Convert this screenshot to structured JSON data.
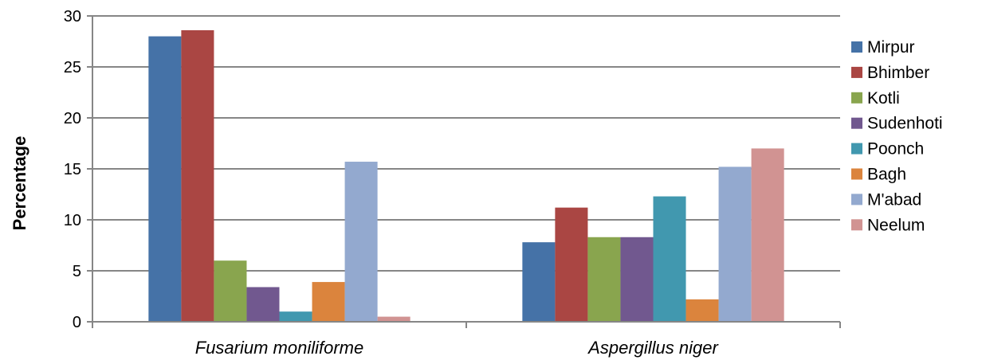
{
  "chart_data": {
    "type": "bar",
    "categories": [
      "Fusarium moniliforme",
      "Aspergillus niger"
    ],
    "ylabel": "Percentage",
    "xlabel": "",
    "ylim": [
      0,
      30
    ],
    "yticks": [
      0,
      5,
      10,
      15,
      20,
      25,
      30
    ],
    "grid": true,
    "legend_position": "right",
    "series": [
      {
        "name": "Mirpur",
        "color": "#4572A7",
        "values": [
          28.0,
          7.8
        ]
      },
      {
        "name": "Bhimber",
        "color": "#AA4643",
        "values": [
          28.6,
          11.2
        ]
      },
      {
        "name": "Kotli",
        "color": "#89A54E",
        "values": [
          6.0,
          8.3
        ]
      },
      {
        "name": "Sudenhoti",
        "color": "#71588F",
        "values": [
          3.4,
          8.3
        ]
      },
      {
        "name": "Poonch",
        "color": "#4198AF",
        "values": [
          1.0,
          12.3
        ]
      },
      {
        "name": "Bagh",
        "color": "#DB843D",
        "values": [
          3.9,
          2.2
        ]
      },
      {
        "name": "M'abad",
        "color": "#93A9CF",
        "values": [
          15.7,
          15.2
        ]
      },
      {
        "name": "Neelum",
        "color": "#D19392",
        "values": [
          0.5,
          17.0
        ]
      }
    ]
  }
}
